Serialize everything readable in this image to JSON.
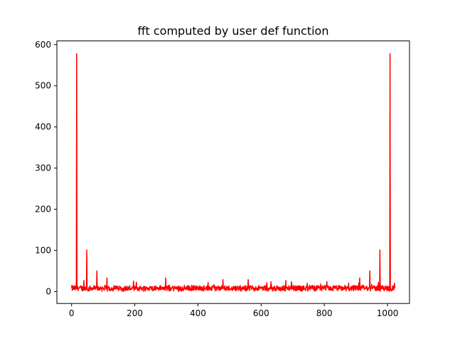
{
  "chart_data": {
    "type": "line",
    "title": "fft computed by user def function",
    "xlabel": "",
    "ylabel": "",
    "xlim": [
      -46.6,
      1069.6
    ],
    "ylim": [
      -29,
      609
    ],
    "xticks": [
      0,
      200,
      400,
      600,
      800,
      1000
    ],
    "yticks": [
      0,
      100,
      200,
      300,
      400,
      500,
      600
    ],
    "grid": false,
    "legend": "none",
    "series": [
      {
        "color": "#ff0000",
        "n_points": 1024,
        "noise_baseline": 8,
        "noise_amplitude": 8,
        "peaks": [
          {
            "x": 16,
            "y": 578
          },
          {
            "x": 48,
            "y": 101
          },
          {
            "x": 80,
            "y": 50
          },
          {
            "x": 112,
            "y": 33
          },
          {
            "x": 912,
            "y": 33
          },
          {
            "x": 944,
            "y": 50
          },
          {
            "x": 976,
            "y": 101
          },
          {
            "x": 1008,
            "y": 578
          }
        ]
      }
    ]
  }
}
